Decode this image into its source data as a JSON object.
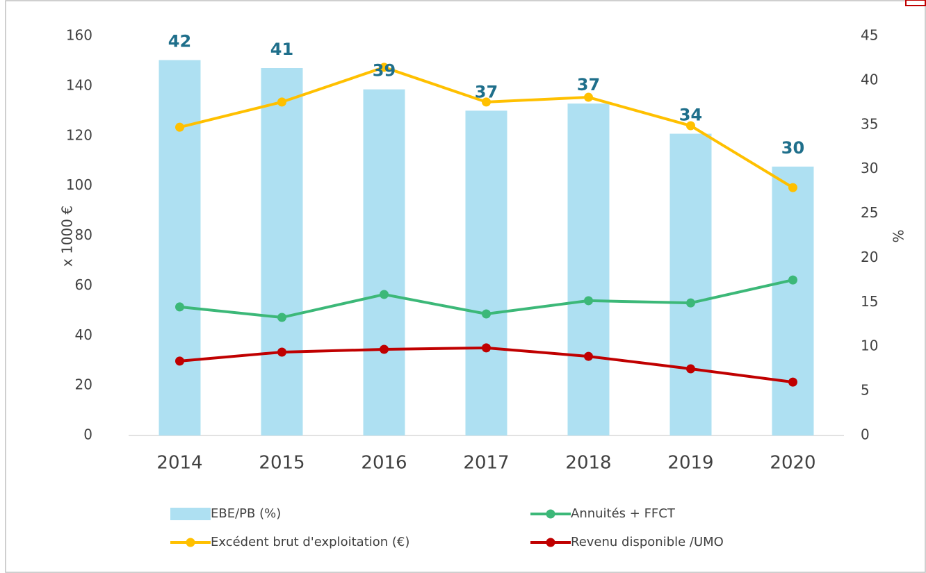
{
  "chart_data": {
    "type": "bar-line",
    "categories": [
      "2014",
      "2015",
      "2016",
      "2017",
      "2018",
      "2019",
      "2020"
    ],
    "ylabel": "x 1000 €",
    "y2label": "%",
    "ylim": [
      0,
      160
    ],
    "yticks": [
      0,
      20,
      40,
      60,
      80,
      100,
      120,
      140,
      160
    ],
    "y2lim": [
      0,
      45
    ],
    "y2ticks": [
      0,
      5,
      10,
      15,
      20,
      25,
      30,
      35,
      40,
      45
    ],
    "series": [
      {
        "name": "EBE/PB (%)",
        "type": "bar",
        "axis": "y2",
        "color": "#aee0f2",
        "values": [
          42.3,
          41.4,
          39.0,
          36.6,
          37.4,
          34.0,
          30.3
        ],
        "value_labels": [
          "42",
          "41",
          "39",
          "37",
          "37",
          "34",
          "30"
        ]
      },
      {
        "name": "Excédent brut d'exploitation (€)",
        "type": "line",
        "color": "#ffc000",
        "values": [
          123.5,
          133.6,
          147.5,
          133.6,
          135.5,
          124.1,
          99.3
        ]
      },
      {
        "name": "Annuités + FFCT",
        "type": "line",
        "color": "#3cb878",
        "values": [
          51.5,
          47.3,
          56.5,
          48.7,
          54.0,
          53.1,
          62.3
        ]
      },
      {
        "name": "Revenu disponible /UMO",
        "type": "line",
        "color": "#c00000",
        "values": [
          29.8,
          33.4,
          34.5,
          35.1,
          31.7,
          26.7,
          21.4
        ]
      }
    ]
  }
}
